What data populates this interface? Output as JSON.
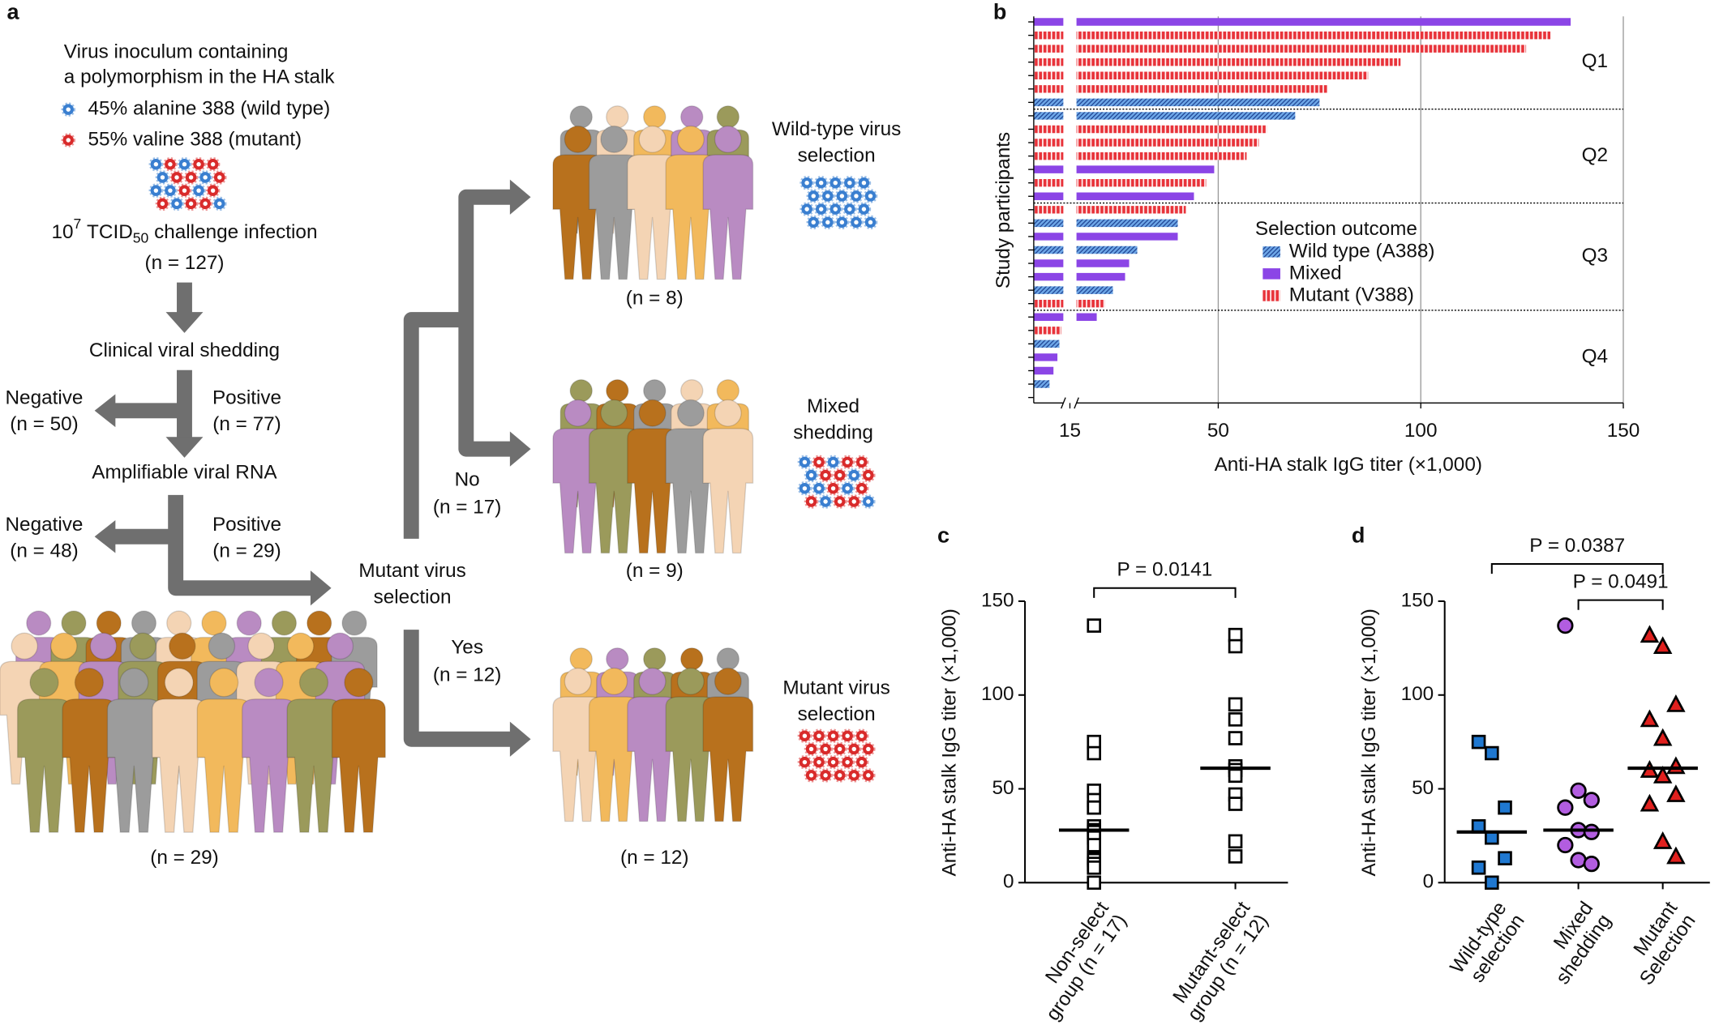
{
  "diagram": {
    "panel_label": "a",
    "inoculum": {
      "title": [
        "Virus inoculum containing",
        "a polymorphism in the HA stalk"
      ],
      "wild_type": "45% alanine 388 (wild type)",
      "mutant": "55% valine 388 (mutant)"
    },
    "challenge": {
      "base": "10",
      "exponent": "7",
      "unit": "TCID",
      "unit_sub": "50",
      "text": "challenge infection",
      "n": "(n = 127)"
    },
    "shedding": {
      "label": "Clinical viral shedding",
      "negative": "Negative",
      "negative_n": "(n = 50)",
      "positive": "Positive",
      "positive_n": "(n = 77)"
    },
    "rna": {
      "label": "Amplifiable viral RNA",
      "negative": "Negative",
      "negative_n": "(n = 48)",
      "positive": "Positive",
      "positive_n": "(n = 29)"
    },
    "cohort_n": "(n = 29)",
    "selection": {
      "label": [
        "Mutant virus",
        "selection"
      ],
      "no": "No",
      "no_n": "(n = 17)",
      "yes": "Yes",
      "yes_n": "(n = 12)"
    },
    "outcomes": [
      {
        "label": [
          "Wild-type virus",
          "selection"
        ],
        "n": "(n = 8)"
      },
      {
        "label": [
          "Mixed",
          "shedding"
        ],
        "n": "(n = 9)"
      },
      {
        "label": [
          "Mutant virus",
          "selection"
        ],
        "n": "(n = 12)"
      }
    ]
  },
  "chart_data": [
    {
      "panel_label": "b",
      "type": "bar",
      "orientation": "horizontal",
      "x_label": "Anti-HA stalk IgG titer (×1,000)",
      "y_label": "Study participants",
      "xlim": [
        0,
        150
      ],
      "axis_break": 15,
      "xticks": [
        15,
        50,
        100,
        150
      ],
      "grid": true,
      "quartiles": [
        "Q1",
        "Q2",
        "Q3",
        "Q4"
      ],
      "legend": {
        "title": "Selection outcome"
      },
      "series": [
        {
          "name": "Wild type (A388)",
          "color": "#6ea8e8",
          "pattern": "hatched",
          "values": [
            null,
            null,
            null,
            null,
            null,
            null,
            75,
            69,
            null,
            null,
            null,
            null,
            null,
            null,
            null,
            40,
            null,
            30,
            null,
            null,
            24,
            null,
            null,
            null,
            13,
            null,
            null,
            8,
            0
          ]
        },
        {
          "name": "Mixed",
          "color": "#8b45e6",
          "pattern": "solid",
          "values": [
            137,
            null,
            null,
            null,
            null,
            null,
            null,
            null,
            null,
            null,
            null,
            49,
            null,
            44,
            null,
            null,
            40,
            null,
            28,
            27,
            null,
            null,
            20,
            null,
            null,
            12,
            10,
            null,
            null
          ]
        },
        {
          "name": "Mutant (V388)",
          "color": "#e8333a",
          "pattern": "striped",
          "values": [
            null,
            132,
            126,
            95,
            87,
            77,
            null,
            null,
            62,
            60,
            57,
            null,
            47,
            null,
            42,
            null,
            null,
            null,
            null,
            null,
            null,
            22,
            null,
            14,
            null,
            null,
            null,
            null,
            null
          ]
        }
      ]
    },
    {
      "panel_label": "c",
      "type": "strip",
      "y_label": "Anti-HA stalk IgG titer (×1,000)",
      "ylim": [
        0,
        150
      ],
      "yticks": [
        0,
        50,
        100,
        150
      ],
      "categories": [
        [
          "Non-select",
          "group (n = 17)"
        ],
        [
          "Mutant-select",
          "group (n = 12)"
        ]
      ],
      "values": [
        [
          137,
          75,
          69,
          49,
          44,
          40,
          40,
          30,
          28,
          27,
          24,
          20,
          13,
          12,
          10,
          8,
          0
        ],
        [
          132,
          126,
          95,
          87,
          77,
          62,
          60,
          57,
          47,
          42,
          22,
          14
        ]
      ],
      "medians": [
        28,
        61
      ],
      "markers": [
        "square",
        "square"
      ],
      "colors": [
        "#ffffff",
        "#ffffff"
      ],
      "comparisons": [
        {
          "text": "P = 0.0141",
          "pair": [
            0,
            1
          ]
        }
      ]
    },
    {
      "panel_label": "d",
      "type": "strip",
      "y_label": "Anti-HA stalk IgG titer (×1,000)",
      "ylim": [
        0,
        150
      ],
      "yticks": [
        0,
        50,
        100,
        150
      ],
      "categories": [
        [
          "Wild-type",
          "selection"
        ],
        [
          "Mixed",
          "shedding"
        ],
        [
          "Mutant",
          "Selection"
        ]
      ],
      "values": [
        [
          75,
          69,
          40,
          30,
          24,
          13,
          8,
          0
        ],
        [
          137,
          49,
          44,
          40,
          28,
          27,
          20,
          12,
          10
        ],
        [
          132,
          126,
          95,
          87,
          77,
          62,
          60,
          57,
          47,
          42,
          22,
          14
        ]
      ],
      "medians": [
        27,
        28,
        61
      ],
      "markers": [
        "square",
        "circle",
        "triangle"
      ],
      "colors": [
        "#1f78d1",
        "#b25de0",
        "#e0201e"
      ],
      "comparisons": [
        {
          "text": "P = 0.0387",
          "pair": [
            0,
            2
          ]
        },
        {
          "text": "P = 0.0491",
          "pair": [
            1,
            2
          ]
        }
      ]
    }
  ]
}
